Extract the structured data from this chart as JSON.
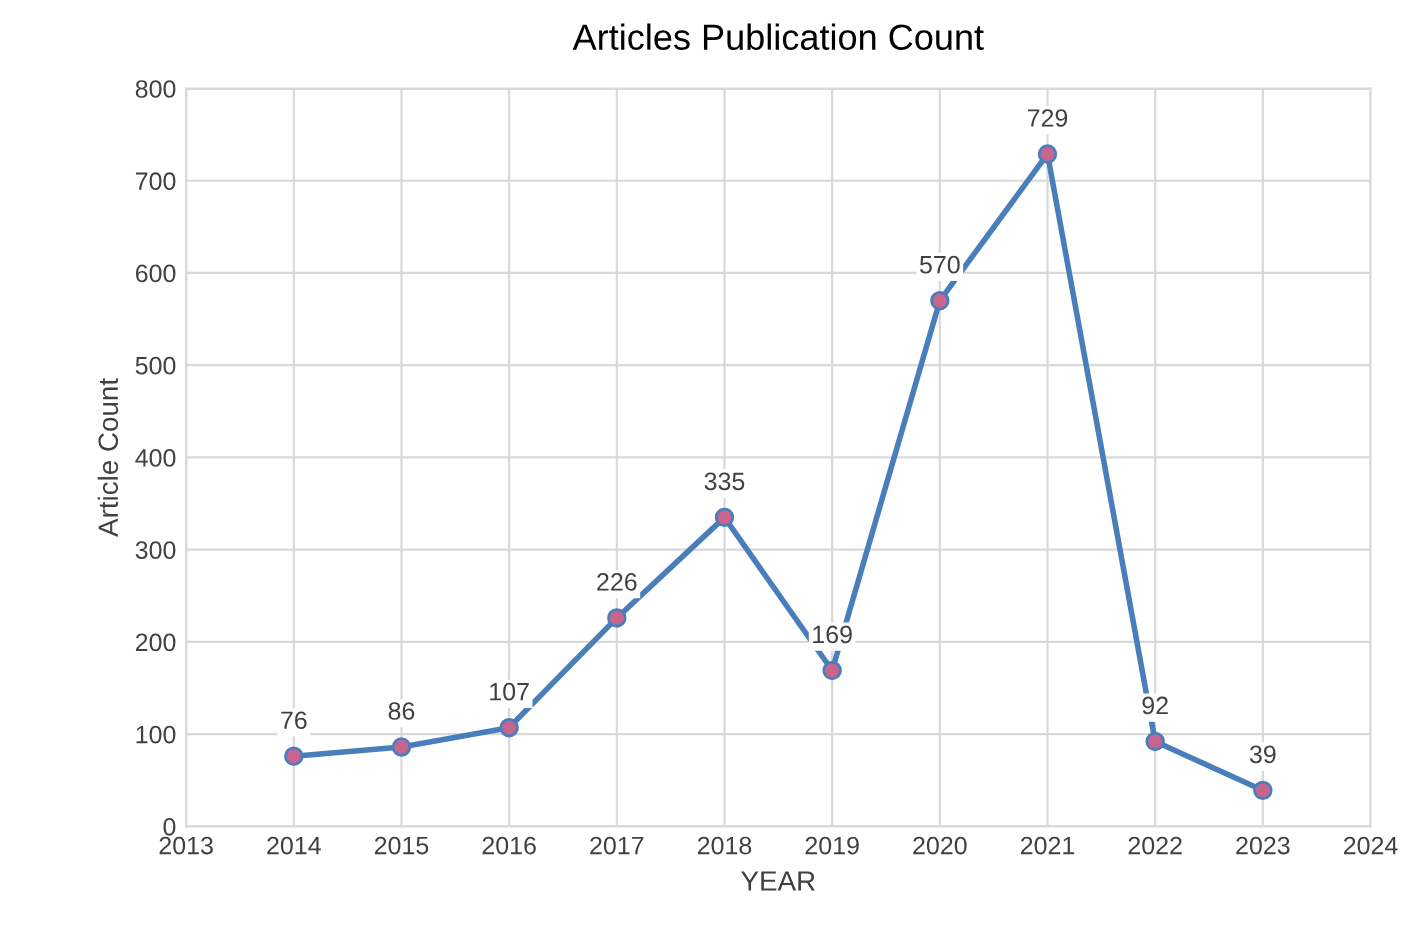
{
  "chart_data": {
    "type": "line",
    "title": "Articles Publication Count",
    "xlabel": "YEAR",
    "ylabel": "Article Count",
    "x": [
      2014,
      2015,
      2016,
      2017,
      2018,
      2019,
      2020,
      2021,
      2022,
      2023
    ],
    "series": [
      {
        "color": "#4a7ebb",
        "values": [
          76,
          86,
          107,
          226,
          335,
          169,
          570,
          729,
          92,
          39
        ]
      }
    ],
    "xlim": [
      2013,
      2024
    ],
    "xticks": [
      2013,
      2014,
      2015,
      2016,
      2017,
      2018,
      2019,
      2020,
      2021,
      2022,
      2023,
      2024
    ],
    "ylim": [
      0,
      800
    ],
    "yticks": [
      0,
      100,
      200,
      300,
      400,
      500,
      600,
      700,
      800
    ],
    "grid": true,
    "marker": "circle",
    "line_style": "solid",
    "data_labels": true
  }
}
